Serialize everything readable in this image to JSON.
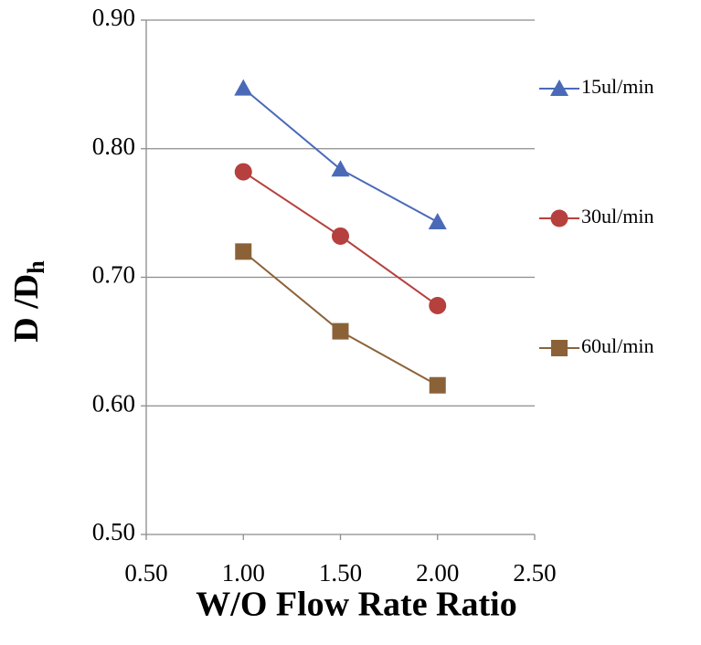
{
  "chart_data": {
    "type": "line",
    "xlabel": "W/O Flow Rate Ratio",
    "ylabel": "D /D",
    "ylabel_subscript": "h",
    "x": [
      1.0,
      1.5,
      2.0
    ],
    "series": [
      {
        "name": "15ul/min",
        "color": "#4a6ab8",
        "marker": "triangle",
        "values": [
          0.847,
          0.784,
          0.743
        ]
      },
      {
        "name": "30ul/min",
        "color": "#b5403e",
        "marker": "circle",
        "values": [
          0.782,
          0.732,
          0.678
        ]
      },
      {
        "name": "60ul/min",
        "color": "#8b6238",
        "marker": "square",
        "values": [
          0.72,
          0.658,
          0.616
        ]
      }
    ],
    "xlim": [
      0.5,
      2.5
    ],
    "xticks": [
      {
        "value": 0.5,
        "label": "0.50"
      },
      {
        "value": 1.0,
        "label": "1.00"
      },
      {
        "value": 1.5,
        "label": "1.50"
      },
      {
        "value": 2.0,
        "label": "2.00"
      },
      {
        "value": 2.5,
        "label": "2.50"
      }
    ],
    "ylim": [
      0.5,
      0.9
    ],
    "yticks": [
      {
        "value": 0.5,
        "label": "0.50"
      },
      {
        "value": 0.6,
        "label": "0.60"
      },
      {
        "value": 0.7,
        "label": "0.70"
      },
      {
        "value": 0.8,
        "label": "0.80"
      },
      {
        "value": 0.9,
        "label": "0.90"
      }
    ],
    "grid": true,
    "legend": "right"
  }
}
